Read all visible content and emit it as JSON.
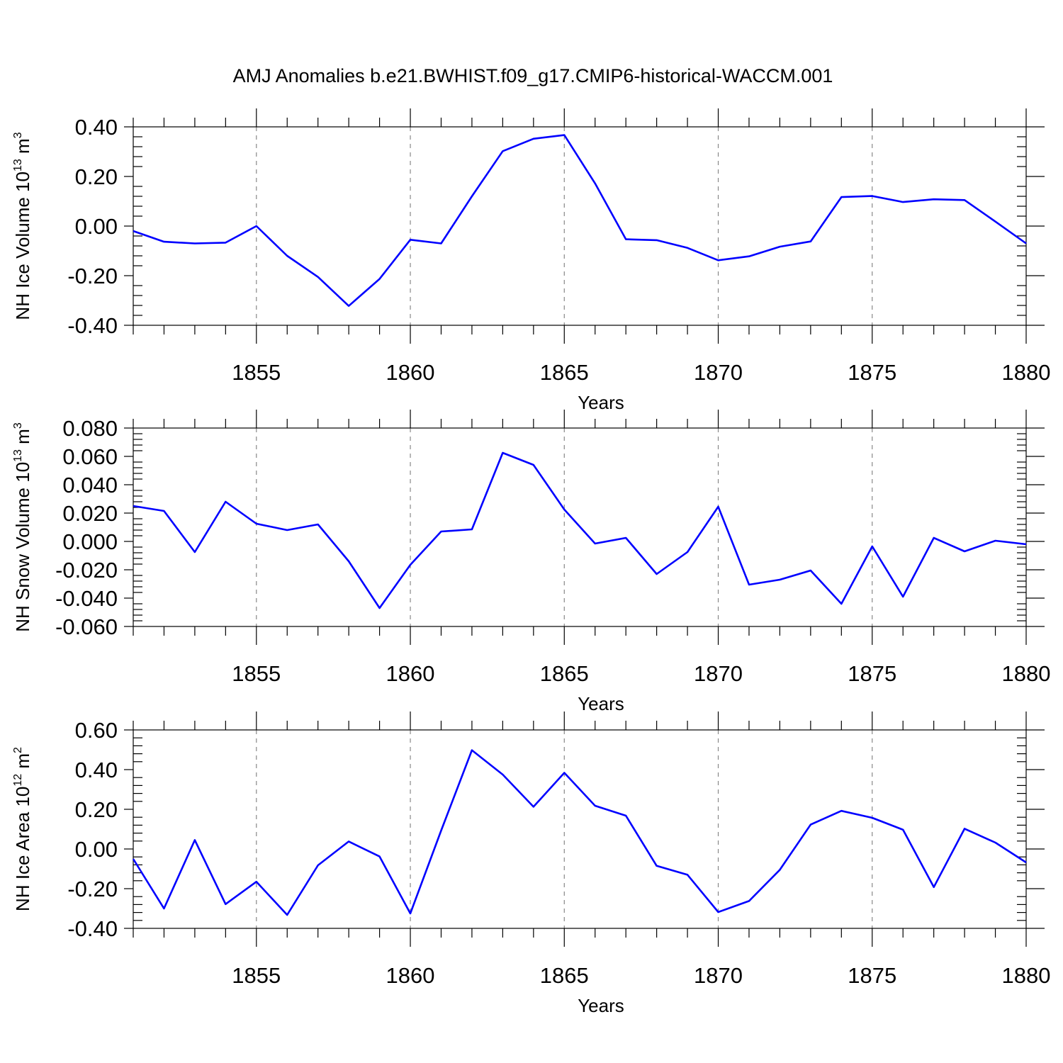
{
  "title": "AMJ Anomalies b.e21.BWHIST.f09_g17.CMIP6-historical-WACCM.001",
  "colors": {
    "line": "#0000ff",
    "grid": "#888888",
    "axis": "#000000"
  },
  "chart_data": [
    {
      "type": "line",
      "ylabel_main": "NH Ice Volume 10",
      "ylabel_exp": "13",
      "ylabel_unit": " m",
      "ylabel_unit_exp": "3",
      "xlabel": "Years",
      "xlim": [
        1851,
        1880
      ],
      "ylim": [
        -0.4,
        0.4
      ],
      "yticks": [
        -0.4,
        -0.2,
        0.0,
        0.2,
        0.4
      ],
      "yticklabels": [
        "-0.40",
        "-0.20",
        "0.00",
        "0.20",
        "0.40"
      ],
      "xticks": [
        1855,
        1860,
        1865,
        1870,
        1875,
        1880
      ],
      "xticklabels": [
        "1855",
        "1860",
        "1865",
        "1870",
        "1875",
        "1880"
      ],
      "grid_x": [
        1855,
        1860,
        1865,
        1870,
        1875
      ],
      "x": [
        1851,
        1852,
        1853,
        1854,
        1855,
        1856,
        1857,
        1858,
        1859,
        1860,
        1861,
        1862,
        1863,
        1864,
        1865,
        1866,
        1867,
        1868,
        1869,
        1870,
        1871,
        1872,
        1873,
        1874,
        1875,
        1876,
        1877,
        1878,
        1879,
        1880
      ],
      "values": [
        -0.02,
        -0.063,
        -0.07,
        -0.067,
        0.0,
        -0.12,
        -0.205,
        -0.322,
        -0.213,
        -0.055,
        -0.07,
        0.12,
        0.302,
        0.352,
        0.367,
        0.172,
        -0.053,
        -0.057,
        -0.088,
        -0.138,
        -0.122,
        -0.083,
        -0.062,
        0.117,
        0.121,
        0.097,
        0.108,
        0.105,
        0.018,
        -0.07
      ]
    },
    {
      "type": "line",
      "ylabel_main": "NH Snow Volume 10",
      "ylabel_exp": "13",
      "ylabel_unit": " m",
      "ylabel_unit_exp": "3",
      "xlabel": "Years",
      "xlim": [
        1851,
        1880
      ],
      "ylim": [
        -0.06,
        0.08
      ],
      "yticks": [
        -0.06,
        -0.04,
        -0.02,
        0.0,
        0.02,
        0.04,
        0.06,
        0.08
      ],
      "yticklabels": [
        "-0.060",
        "-0.040",
        "-0.020",
        "0.000",
        "0.020",
        "0.040",
        "0.060",
        "0.080"
      ],
      "xticks": [
        1855,
        1860,
        1865,
        1870,
        1875,
        1880
      ],
      "xticklabels": [
        "1855",
        "1860",
        "1865",
        "1870",
        "1875",
        "1880"
      ],
      "grid_x": [
        1855,
        1860,
        1865,
        1870,
        1875
      ],
      "x": [
        1851,
        1852,
        1853,
        1854,
        1855,
        1856,
        1857,
        1858,
        1859,
        1860,
        1861,
        1862,
        1863,
        1864,
        1865,
        1866,
        1867,
        1868,
        1869,
        1870,
        1871,
        1872,
        1873,
        1874,
        1875,
        1876,
        1877,
        1878,
        1879,
        1880
      ],
      "values": [
        0.025,
        0.0215,
        -0.0075,
        0.028,
        0.0125,
        0.008,
        0.012,
        -0.014,
        -0.047,
        -0.0165,
        0.007,
        0.0085,
        0.0625,
        0.054,
        0.0225,
        -0.0015,
        0.0025,
        -0.023,
        -0.0075,
        0.0245,
        -0.0305,
        -0.027,
        -0.0205,
        -0.044,
        -0.0035,
        -0.039,
        0.0025,
        -0.007,
        0.0005,
        -0.002
      ]
    },
    {
      "type": "line",
      "ylabel_main": "NH Ice Area 10",
      "ylabel_exp": "12",
      "ylabel_unit": " m",
      "ylabel_unit_exp": "2",
      "xlabel": "Years",
      "xlim": [
        1851,
        1880
      ],
      "ylim": [
        -0.4,
        0.6
      ],
      "yticks": [
        -0.4,
        -0.2,
        0.0,
        0.2,
        0.4,
        0.6
      ],
      "yticklabels": [
        "-0.40",
        "-0.20",
        "0.00",
        "0.20",
        "0.40",
        "0.60"
      ],
      "xticks": [
        1855,
        1860,
        1865,
        1870,
        1875,
        1880
      ],
      "xticklabels": [
        "1855",
        "1860",
        "1865",
        "1870",
        "1875",
        "1880"
      ],
      "grid_x": [
        1855,
        1860,
        1865,
        1870,
        1875
      ],
      "x": [
        1851,
        1852,
        1853,
        1854,
        1855,
        1856,
        1857,
        1858,
        1859,
        1860,
        1861,
        1862,
        1863,
        1864,
        1865,
        1866,
        1867,
        1868,
        1869,
        1870,
        1871,
        1872,
        1873,
        1874,
        1875,
        1876,
        1877,
        1878,
        1879,
        1880
      ],
      "values": [
        -0.05,
        -0.3,
        0.045,
        -0.278,
        -0.165,
        -0.332,
        -0.082,
        0.038,
        -0.038,
        -0.325,
        0.093,
        0.498,
        0.375,
        0.213,
        0.384,
        0.218,
        0.168,
        -0.085,
        -0.13,
        -0.318,
        -0.262,
        -0.105,
        0.123,
        0.192,
        0.157,
        0.097,
        -0.192,
        0.102,
        0.032,
        -0.068
      ]
    }
  ]
}
